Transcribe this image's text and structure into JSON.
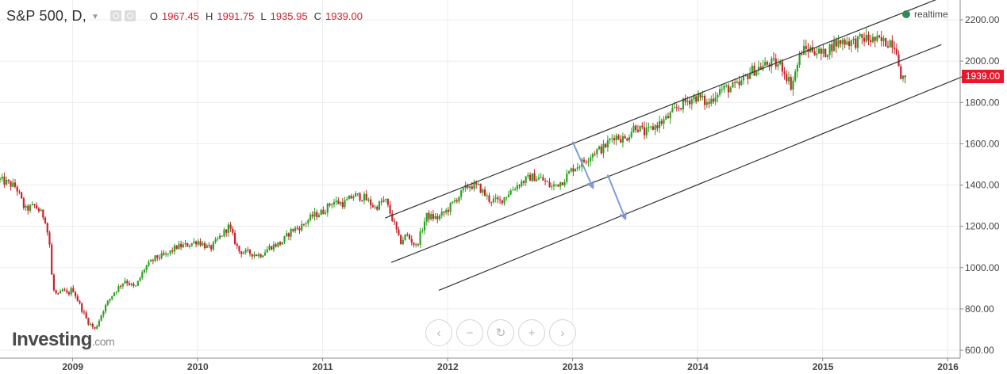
{
  "header": {
    "symbol": "S&P 500, D,",
    "ohlc": [
      {
        "key": "O",
        "value": "1967.45"
      },
      {
        "key": "H",
        "value": "1991.75"
      },
      {
        "key": "L",
        "value": "1935.95"
      },
      {
        "key": "C",
        "value": "1939.00"
      }
    ],
    "realtime_label": "realtime"
  },
  "last_price_badge": "1939.00",
  "logo": {
    "name": "Investing",
    "domain": ".com"
  },
  "zoom_controls": [
    "scroll-left",
    "zoom-out",
    "reset",
    "zoom-in",
    "scroll-right"
  ],
  "colors": {
    "up": "#2aa31f",
    "down": "#c8232c",
    "trendline": "#333333",
    "arrow": "#7f9bd6",
    "badge": "#e8182c"
  },
  "chart_data": {
    "type": "candlestick",
    "title": "",
    "xlabel": "",
    "ylabel": "",
    "x_range": [
      2008.42,
      2016.1
    ],
    "ylim": [
      570,
      2300
    ],
    "y_ticks": [
      "2200.00",
      "2000.00",
      "1800.00",
      "1600.00",
      "1400.00",
      "1200.00",
      "1000.00",
      "800.00",
      "600.00"
    ],
    "x_ticks": [
      "2009",
      "2010",
      "2011",
      "2012",
      "2013",
      "2014",
      "2015",
      "2016"
    ],
    "series": [
      {
        "values": [
          [
            2008.42,
            1425
          ],
          [
            2008.55,
            1390
          ],
          [
            2008.62,
            1280
          ],
          [
            2008.7,
            1300
          ],
          [
            2008.78,
            1240
          ],
          [
            2008.82,
            1100
          ],
          [
            2008.84,
            900
          ],
          [
            2008.88,
            860
          ],
          [
            2008.92,
            890
          ],
          [
            2008.96,
            870
          ],
          [
            2009.0,
            900
          ],
          [
            2009.05,
            830
          ],
          [
            2009.12,
            740
          ],
          [
            2009.18,
            700
          ],
          [
            2009.25,
            800
          ],
          [
            2009.33,
            880
          ],
          [
            2009.42,
            940
          ],
          [
            2009.5,
            900
          ],
          [
            2009.58,
            1000
          ],
          [
            2009.67,
            1050
          ],
          [
            2009.75,
            1060
          ],
          [
            2009.83,
            1100
          ],
          [
            2009.92,
            1110
          ],
          [
            2010.0,
            1130
          ],
          [
            2010.1,
            1090
          ],
          [
            2010.25,
            1200
          ],
          [
            2010.33,
            1080
          ],
          [
            2010.42,
            1070
          ],
          [
            2010.5,
            1060
          ],
          [
            2010.58,
            1100
          ],
          [
            2010.67,
            1120
          ],
          [
            2010.75,
            1180
          ],
          [
            2010.83,
            1200
          ],
          [
            2010.92,
            1250
          ],
          [
            2011.0,
            1270
          ],
          [
            2011.08,
            1320
          ],
          [
            2011.17,
            1310
          ],
          [
            2011.25,
            1350
          ],
          [
            2011.33,
            1340
          ],
          [
            2011.42,
            1290
          ],
          [
            2011.5,
            1330
          ],
          [
            2011.58,
            1200
          ],
          [
            2011.62,
            1120
          ],
          [
            2011.67,
            1160
          ],
          [
            2011.75,
            1100
          ],
          [
            2011.83,
            1250
          ],
          [
            2011.92,
            1240
          ],
          [
            2012.0,
            1280
          ],
          [
            2012.08,
            1340
          ],
          [
            2012.17,
            1400
          ],
          [
            2012.25,
            1390
          ],
          [
            2012.33,
            1330
          ],
          [
            2012.42,
            1320
          ],
          [
            2012.5,
            1370
          ],
          [
            2012.58,
            1410
          ],
          [
            2012.67,
            1440
          ],
          [
            2012.75,
            1430
          ],
          [
            2012.83,
            1390
          ],
          [
            2012.92,
            1420
          ],
          [
            2013.0,
            1480
          ],
          [
            2013.08,
            1510
          ],
          [
            2013.17,
            1560
          ],
          [
            2013.25,
            1580
          ],
          [
            2013.33,
            1640
          ],
          [
            2013.42,
            1620
          ],
          [
            2013.5,
            1690
          ],
          [
            2013.58,
            1650
          ],
          [
            2013.67,
            1690
          ],
          [
            2013.75,
            1720
          ],
          [
            2013.83,
            1770
          ],
          [
            2013.92,
            1810
          ],
          [
            2014.0,
            1830
          ],
          [
            2014.08,
            1790
          ],
          [
            2014.17,
            1860
          ],
          [
            2014.25,
            1870
          ],
          [
            2014.33,
            1880
          ],
          [
            2014.42,
            1950
          ],
          [
            2014.5,
            1970
          ],
          [
            2014.58,
            1990
          ],
          [
            2014.67,
            1980
          ],
          [
            2014.75,
            1880
          ],
          [
            2014.83,
            2050
          ],
          [
            2014.92,
            2060
          ],
          [
            2015.0,
            2030
          ],
          [
            2015.08,
            2080
          ],
          [
            2015.17,
            2100
          ],
          [
            2015.25,
            2090
          ],
          [
            2015.33,
            2110
          ],
          [
            2015.42,
            2100
          ],
          [
            2015.5,
            2090
          ],
          [
            2015.55,
            2100
          ],
          [
            2015.6,
            2050
          ],
          [
            2015.63,
            1880
          ],
          [
            2015.66,
            1940
          ]
        ]
      }
    ],
    "annotations": {
      "channel_lines": [
        {
          "x1": 2011.5,
          "y1": 1240,
          "x2": 2016.0,
          "y2": 2320
        },
        {
          "x1": 2011.55,
          "y1": 1025,
          "x2": 2015.95,
          "y2": 2080
        },
        {
          "x1": 2011.93,
          "y1": 890,
          "x2": 2016.2,
          "y2": 1945
        }
      ],
      "arrows": [
        {
          "x1": 2013.0,
          "y1": 1610,
          "x2": 2013.16,
          "y2": 1390
        },
        {
          "x1": 2013.28,
          "y1": 1450,
          "x2": 2013.42,
          "y2": 1240
        }
      ]
    },
    "grid": true,
    "legend": "none"
  }
}
